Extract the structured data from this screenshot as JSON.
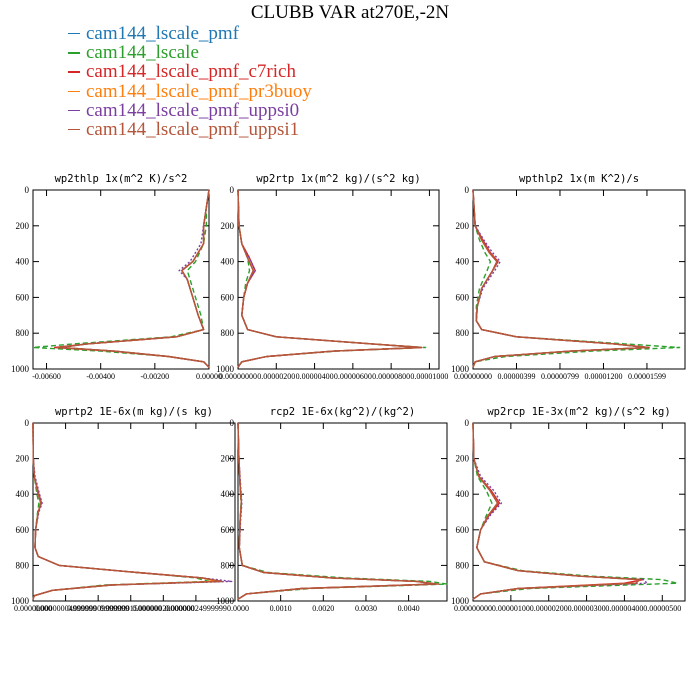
{
  "title": "CLUBB VAR at270E,-2N",
  "legend": [
    {
      "label": "cam144_lscale_pmf",
      "color": "#1f77b4",
      "dash": "solid"
    },
    {
      "label": "cam144_lscale",
      "color": "#2ca02c",
      "dash": "dashed"
    },
    {
      "label": "cam144_lscale_pmf_c7rich",
      "color": "#d62728",
      "dash": "solid"
    },
    {
      "label": "cam144_lscale_pmf_pr3buoy",
      "color": "#ff7f0e",
      "dash": "solid"
    },
    {
      "label": "cam144_lscale_pmf_uppsi0",
      "color": "#7b3fa0",
      "dash": "dotted"
    },
    {
      "label": "cam144_lscale_pmf_uppsi1",
      "color": "#b5563b",
      "dash": "solid"
    }
  ],
  "chart_data": [
    {
      "type": "line",
      "title": "wp2thlp  1x(m^2 K)/s^2",
      "xlim": [
        -0.0065,
        0.0
      ],
      "ylim": [
        1000,
        0
      ],
      "xticks": [
        -0.006,
        -0.004,
        -0.002,
        0.0
      ],
      "xtick_labels": [
        "-0.00600",
        "-0.00400",
        "-0.00200",
        "0.00000"
      ],
      "yticks": [
        0,
        200,
        400,
        600,
        800,
        1000
      ],
      "ytick_labels": [
        "0",
        "200",
        "400",
        "600",
        "800",
        "1000"
      ],
      "y": [
        0,
        100,
        200,
        300,
        400,
        450,
        500,
        600,
        700,
        780,
        820,
        860,
        880,
        900,
        930,
        960,
        990
      ],
      "series": [
        {
          "values": [
            0,
            -0.0001,
            -0.0002,
            -0.0002,
            -0.0006,
            -0.001,
            -0.0008,
            -0.0006,
            -0.0004,
            -0.0002,
            -0.0012,
            -0.0045,
            -0.0055,
            -0.0035,
            -0.0015,
            -0.0002,
            0
          ]
        },
        {
          "values": [
            0,
            -0.0001,
            -0.0001,
            -0.0002,
            -0.0005,
            -0.0008,
            -0.0007,
            -0.0005,
            -0.0003,
            -0.0002,
            -0.0014,
            -0.005,
            -0.0065,
            -0.004,
            -0.0015,
            -0.0002,
            0
          ]
        },
        {
          "values": [
            0,
            -0.0001,
            -0.0002,
            -0.0002,
            -0.0006,
            -0.001,
            -0.0008,
            -0.0006,
            -0.0004,
            -0.0002,
            -0.0012,
            -0.0045,
            -0.0057,
            -0.0036,
            -0.0015,
            -0.0002,
            0
          ]
        },
        {
          "values": [
            0,
            -0.0001,
            -0.0002,
            -0.0002,
            -0.0006,
            -0.001,
            -0.0008,
            -0.0006,
            -0.0004,
            -0.0002,
            -0.0012,
            -0.0045,
            -0.0055,
            -0.0035,
            -0.0015,
            -0.0002,
            0
          ]
        },
        {
          "values": [
            0,
            -0.0001,
            -0.0002,
            -0.0003,
            -0.0007,
            -0.0011,
            -0.0008,
            -0.0006,
            -0.0004,
            -0.0002,
            -0.0012,
            -0.0045,
            -0.0055,
            -0.0035,
            -0.0015,
            -0.0002,
            0
          ]
        },
        {
          "values": [
            0,
            -0.0001,
            -0.0002,
            -0.0002,
            -0.0006,
            -0.001,
            -0.0008,
            -0.0006,
            -0.0004,
            -0.0002,
            -0.0012,
            -0.0045,
            -0.0056,
            -0.0035,
            -0.0015,
            -0.0002,
            0
          ]
        }
      ]
    },
    {
      "type": "line",
      "title": "wp2rtp  1x(m^2 kg)/(s^2 kg)",
      "xlim": [
        0.0,
        1.05e-05
      ],
      "ylim": [
        1000,
        0
      ],
      "xticks": [
        0.0,
        2e-06,
        4e-06,
        6e-06,
        8e-06,
        1e-05
      ],
      "xtick_labels": [
        "0.00000000",
        "0.00000200",
        "0.00000400",
        "0.00000600",
        "0.00000800",
        "0.00001000"
      ],
      "yticks": [
        0,
        200,
        400,
        600,
        800,
        1000
      ],
      "ytick_labels": [
        "0",
        "200",
        "400",
        "600",
        "800",
        "1000"
      ],
      "y": [
        0,
        200,
        300,
        380,
        450,
        520,
        600,
        700,
        780,
        820,
        860,
        880,
        900,
        930,
        960,
        990
      ],
      "series": [
        {
          "values": [
            0,
            5e-08,
            2e-07,
            5e-07,
            8e-07,
            5e-07,
            3e-07,
            2e-07,
            5e-07,
            2e-06,
            7e-06,
            9.5e-06,
            5e-06,
            1.5e-06,
            2e-07,
            0
          ]
        },
        {
          "values": [
            0,
            5e-08,
            2e-07,
            5e-07,
            6e-07,
            4e-07,
            3e-07,
            2e-07,
            5e-07,
            2e-06,
            7e-06,
            9.8e-06,
            5.2e-06,
            1.5e-06,
            2e-07,
            0
          ]
        },
        {
          "values": [
            0,
            5e-08,
            2e-07,
            6e-07,
            9e-07,
            5e-07,
            3e-07,
            2e-07,
            5e-07,
            2e-06,
            7e-06,
            9.6e-06,
            5e-06,
            1.5e-06,
            2e-07,
            0
          ]
        },
        {
          "values": [
            0,
            5e-08,
            2e-07,
            5e-07,
            8e-07,
            5e-07,
            3e-07,
            2e-07,
            5e-07,
            2e-06,
            7e-06,
            9.5e-06,
            5e-06,
            1.5e-06,
            2e-07,
            0
          ]
        },
        {
          "values": [
            0,
            5e-08,
            2e-07,
            6e-07,
            9e-07,
            5e-07,
            3e-07,
            2e-07,
            5e-07,
            2e-06,
            7e-06,
            9.5e-06,
            5e-06,
            1.5e-06,
            2e-07,
            0
          ]
        },
        {
          "values": [
            0,
            5e-08,
            2e-07,
            5e-07,
            8e-07,
            5e-07,
            3e-07,
            2e-07,
            5e-07,
            2e-06,
            7e-06,
            9.6e-06,
            5e-06,
            1.5e-06,
            2e-07,
            0
          ]
        }
      ]
    },
    {
      "type": "line",
      "title": "wpthlp2  1x(m K^2)/s",
      "xlim": [
        0.0,
        1.95e-05
      ],
      "ylim": [
        1000,
        0
      ],
      "xticks": [
        0.0,
        4e-06,
        8e-06,
        1.2e-05,
        1.6e-05
      ],
      "xtick_labels": [
        "0.00000000",
        "0.00000399",
        "0.00000799",
        "0.00001200",
        "0.00001599"
      ],
      "yticks": [
        0,
        200,
        400,
        600,
        800,
        1000
      ],
      "ytick_labels": [
        "0",
        "200",
        "400",
        "600",
        "800",
        "1000"
      ],
      "y": [
        0,
        200,
        280,
        350,
        400,
        450,
        550,
        650,
        730,
        780,
        820,
        860,
        880,
        900,
        930,
        960,
        990
      ],
      "series": [
        {
          "values": [
            0,
            2e-07,
            8e-07,
            1.5e-06,
            2.2e-06,
            1.8e-06,
            8e-07,
            4e-07,
            3e-07,
            8e-07,
            4e-06,
            1.3e-05,
            1.6e-05,
            9e-06,
            2e-06,
            2e-07,
            0
          ]
        },
        {
          "values": [
            0,
            2e-07,
            6e-07,
            1.1e-06,
            1.6e-06,
            1.3e-06,
            6e-07,
            3e-07,
            3e-07,
            8e-07,
            4e-06,
            1.4e-05,
            1.9e-05,
            1.1e-05,
            3e-06,
            2e-07,
            0
          ]
        },
        {
          "values": [
            0,
            2e-07,
            9e-07,
            1.6e-06,
            2.3e-06,
            1.8e-06,
            8e-07,
            4e-07,
            3e-07,
            8e-07,
            4e-06,
            1.3e-05,
            1.62e-05,
            9e-06,
            2e-06,
            2e-07,
            0
          ]
        },
        {
          "values": [
            0,
            2e-07,
            8e-07,
            1.5e-06,
            2.2e-06,
            1.8e-06,
            8e-07,
            4e-07,
            3e-07,
            8e-07,
            4e-06,
            1.3e-05,
            1.6e-05,
            9e-06,
            2e-06,
            2e-07,
            0
          ]
        },
        {
          "values": [
            0,
            2e-07,
            1e-06,
            1.8e-06,
            2.5e-06,
            2e-06,
            9e-07,
            4e-07,
            3e-07,
            8e-07,
            4e-06,
            1.3e-05,
            1.6e-05,
            9e-06,
            2e-06,
            2e-07,
            0
          ]
        },
        {
          "values": [
            0,
            2e-07,
            8e-07,
            1.5e-06,
            2.2e-06,
            1.8e-06,
            8e-07,
            4e-07,
            3e-07,
            8e-07,
            4e-06,
            1.3e-05,
            1.61e-05,
            9e-06,
            2e-06,
            2e-07,
            0
          ]
        }
      ]
    },
    {
      "type": "line",
      "title": "wprtp2  1E-6x(m kg)/(s kg)",
      "xlim": [
        0.0,
        3.1e-08
      ],
      "ylim": [
        1000,
        0
      ],
      "xticks": [
        0.0,
        5e-09,
        1e-08,
        1.5e-08,
        2e-08,
        2.5e-08
      ],
      "xtick_labels": [
        "0.00000000",
        "0.00000004999999",
        "0.00000009999999",
        "0.00000015000000",
        "0.00000020000000",
        "0.00000024999999"
      ],
      "yticks": [
        0,
        200,
        400,
        600,
        800,
        1000
      ],
      "ytick_labels": [
        "0",
        "200",
        "400",
        "600",
        "800",
        "1000"
      ],
      "y": [
        0,
        200,
        300,
        400,
        450,
        500,
        600,
        700,
        750,
        800,
        840,
        870,
        890,
        910,
        940,
        970,
        990
      ],
      "series": [
        {
          "values": [
            0,
            5e-11,
            2e-10,
            8e-10,
            1.2e-09,
            8e-10,
            4e-10,
            3e-10,
            8e-10,
            4e-09,
            1.6e-08,
            2.6e-08,
            2.9e-08,
            1.2e-08,
            3e-09,
            2e-10,
            0
          ]
        },
        {
          "values": [
            0,
            5e-11,
            2e-10,
            6e-10,
            9e-10,
            7e-10,
            4e-10,
            3e-10,
            8e-10,
            4e-09,
            1.6e-08,
            2.5e-08,
            2.7e-08,
            1.1e-08,
            3e-09,
            2e-10,
            0
          ]
        },
        {
          "values": [
            0,
            5e-11,
            2e-10,
            9e-10,
            1.3e-09,
            8e-10,
            4e-10,
            3e-10,
            8e-10,
            4e-09,
            1.6e-08,
            2.6e-08,
            2.85e-08,
            1.2e-08,
            3e-09,
            2e-10,
            0
          ]
        },
        {
          "values": [
            0,
            5e-11,
            2e-10,
            8e-10,
            1.2e-09,
            8e-10,
            4e-10,
            3e-10,
            8e-10,
            4e-09,
            1.6e-08,
            2.6e-08,
            2.8e-08,
            1.2e-08,
            3e-09,
            2e-10,
            0
          ]
        },
        {
          "values": [
            0,
            5e-11,
            3e-10,
            1e-09,
            1.4e-09,
            9e-10,
            4e-10,
            3e-10,
            8e-10,
            4e-09,
            1.6e-08,
            2.6e-08,
            3.05e-08,
            1.2e-08,
            3e-09,
            2e-10,
            0
          ]
        },
        {
          "values": [
            0,
            5e-11,
            2e-10,
            8e-10,
            1.2e-09,
            8e-10,
            4e-10,
            3e-10,
            8e-10,
            4e-09,
            1.6e-08,
            2.6e-08,
            2.9e-08,
            1.2e-08,
            3e-09,
            2e-10,
            0
          ]
        }
      ]
    },
    {
      "type": "line",
      "title": "rcp2  1E-6x(kg^2)/(kg^2)",
      "xlim": [
        0.0,
        0.0049
      ],
      "ylim": [
        1000,
        0
      ],
      "xticks": [
        0.0,
        0.001,
        0.002,
        0.003,
        0.004
      ],
      "xtick_labels": [
        "0.0000",
        "0.0010",
        "0.0020",
        "0.0030",
        "0.0040"
      ],
      "yticks": [
        0,
        200,
        400,
        600,
        800,
        1000
      ],
      "ytick_labels": [
        "0",
        "200",
        "400",
        "600",
        "800",
        "1000"
      ],
      "y": [
        0,
        200,
        350,
        450,
        550,
        700,
        800,
        840,
        870,
        890,
        905,
        930,
        960,
        990
      ],
      "series": [
        {
          "values": [
            0,
            2e-05,
            5e-05,
            8e-05,
            5e-05,
            3e-05,
            0.0001,
            0.0006,
            0.0022,
            0.0042,
            0.0046,
            0.0015,
            0.0002,
            0
          ]
        },
        {
          "values": [
            0,
            2e-05,
            5e-05,
            7e-05,
            5e-05,
            3e-05,
            0.0001,
            0.0007,
            0.0025,
            0.0045,
            0.0049,
            0.0017,
            0.0002,
            0
          ]
        },
        {
          "values": [
            0,
            2e-05,
            5e-05,
            8e-05,
            5e-05,
            3e-05,
            0.0001,
            0.0006,
            0.0022,
            0.0042,
            0.0046,
            0.0015,
            0.0002,
            0
          ]
        },
        {
          "values": [
            0,
            2e-05,
            5e-05,
            8e-05,
            5e-05,
            3e-05,
            0.0001,
            0.0006,
            0.0022,
            0.0042,
            0.0046,
            0.0015,
            0.0002,
            0
          ]
        },
        {
          "values": [
            0,
            2e-05,
            6e-05,
            9e-05,
            6e-05,
            3e-05,
            0.0001,
            0.0006,
            0.0022,
            0.0042,
            0.0046,
            0.0015,
            0.0002,
            0
          ]
        },
        {
          "values": [
            0,
            2e-05,
            5e-05,
            8e-05,
            5e-05,
            3e-05,
            0.0001,
            0.0006,
            0.0022,
            0.0042,
            0.0047,
            0.0015,
            0.0002,
            0
          ]
        }
      ]
    },
    {
      "type": "line",
      "title": "wp2rcp  1E-3x(m^2 kg)/(s^2 kg)",
      "xlim": [
        0.0,
        5.6e-08
      ],
      "ylim": [
        1000,
        0
      ],
      "xticks": [
        0.0,
        1e-08,
        2e-08,
        3e-08,
        4e-08,
        5e-08
      ],
      "xtick_labels": [
        "0.00000000",
        "0.00000100",
        "0.00000200",
        "0.00000300",
        "0.00000400",
        "0.00000500"
      ],
      "yticks": [
        0,
        200,
        400,
        600,
        800,
        1000
      ],
      "ytick_labels": [
        "0",
        "200",
        "400",
        "600",
        "800",
        "1000"
      ],
      "y": [
        0,
        200,
        300,
        380,
        450,
        520,
        600,
        700,
        780,
        830,
        860,
        880,
        900,
        930,
        960,
        990
      ],
      "series": [
        {
          "values": [
            0,
            2e-10,
            1.5e-09,
            4.5e-09,
            6.5e-09,
            4e-09,
            2e-09,
            1e-09,
            3e-09,
            1.2e-08,
            2.8e-08,
            4.4e-08,
            4.3e-08,
            1.2e-08,
            2e-09,
            0
          ]
        },
        {
          "values": [
            0,
            2e-10,
            1.2e-09,
            3.5e-09,
            5e-09,
            3.5e-09,
            2e-09,
            1e-09,
            3e-09,
            1.3e-08,
            3.1e-08,
            5e-08,
            5.4e-08,
            1.5e-08,
            2e-09,
            0
          ]
        },
        {
          "values": [
            0,
            2e-10,
            1.6e-09,
            4.8e-09,
            7e-09,
            4.2e-09,
            2e-09,
            1e-09,
            3e-09,
            1.2e-08,
            2.8e-08,
            4.5e-08,
            4e-08,
            1.2e-08,
            2e-09,
            0
          ]
        },
        {
          "values": [
            0,
            2e-10,
            1.5e-09,
            4.5e-09,
            6.5e-09,
            4e-09,
            2e-09,
            1e-09,
            3e-09,
            1.2e-08,
            2.8e-08,
            4.4e-08,
            4.3e-08,
            1.2e-08,
            2e-09,
            0
          ]
        },
        {
          "values": [
            0,
            2e-10,
            2e-09,
            5.5e-09,
            7.5e-09,
            4.5e-09,
            2e-09,
            1e-09,
            3e-09,
            1.2e-08,
            2.8e-08,
            4.5e-08,
            4.6e-08,
            1.2e-08,
            2e-09,
            0
          ]
        },
        {
          "values": [
            0,
            2e-10,
            1.5e-09,
            4.5e-09,
            6.5e-09,
            4e-09,
            2e-09,
            1e-09,
            3e-09,
            1.2e-08,
            2.8e-08,
            4.4e-08,
            4.3e-08,
            1.2e-08,
            2e-09,
            0
          ]
        }
      ]
    }
  ]
}
